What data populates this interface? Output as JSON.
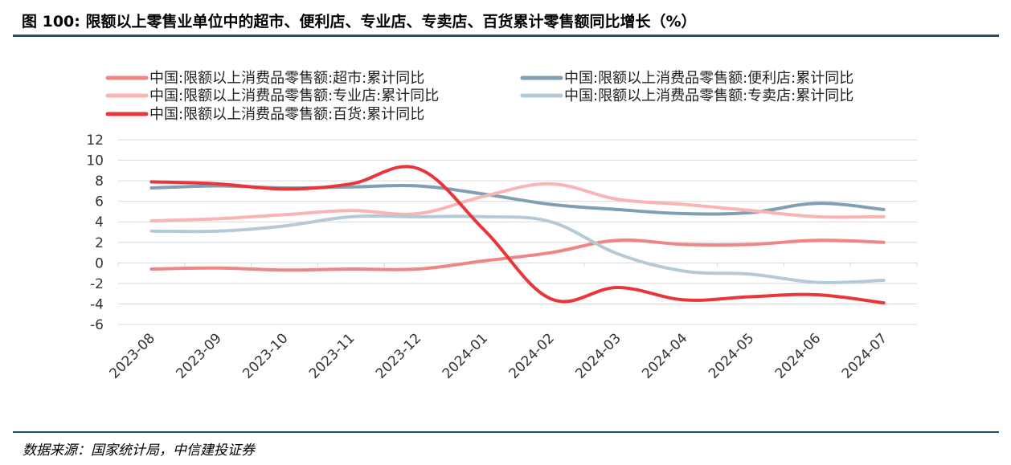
{
  "header": {
    "title": "图 100:  限额以上零售业单位中的超市、便利店、专业店、专卖店、百货累计零售额同比增长（%）"
  },
  "footer": {
    "source": "数据来源：国家统计局，中信建投证券"
  },
  "chart_data": {
    "type": "line",
    "title": "图 100:  限额以上零售业单位中的超市、便利店、专业店、专卖店、百货累计零售额同比增长（%）",
    "xlabel": "",
    "ylabel": "",
    "ylim": [
      -6,
      12
    ],
    "yticks": [
      12,
      10,
      8,
      6,
      4,
      2,
      0,
      -2,
      -4,
      -6
    ],
    "grid": true,
    "legend_position": "top",
    "categories": [
      "2023-08",
      "2023-09",
      "2023-10",
      "2023-11",
      "2023-12",
      "2024-01",
      "2024-02",
      "2024-03",
      "2024-04",
      "2024-05",
      "2024-06",
      "2024-07"
    ],
    "series": [
      {
        "name": "中国:限额以上消费品零售额:超市:累计同比",
        "color": "#ef8684",
        "values": [
          -0.6,
          -0.5,
          -0.7,
          -0.6,
          -0.6,
          0.2,
          1.0,
          2.2,
          1.8,
          1.8,
          2.2,
          2.0
        ]
      },
      {
        "name": "中国:限额以上消费品零售额:便利店:累计同比",
        "color": "#7f9fb5",
        "values": [
          7.3,
          7.5,
          7.3,
          7.4,
          7.5,
          6.7,
          5.7,
          5.2,
          4.8,
          4.9,
          5.8,
          5.2
        ]
      },
      {
        "name": "中国:限额以上消费品零售额:专业店:累计同比",
        "color": "#f8b5b3",
        "values": [
          4.1,
          4.3,
          4.7,
          5.1,
          4.8,
          6.5,
          7.7,
          6.2,
          5.7,
          5.1,
          4.5,
          4.5
        ]
      },
      {
        "name": "中国:限额以上消费品零售额:专卖店:累计同比",
        "color": "#b5c9d6",
        "values": [
          3.1,
          3.1,
          3.6,
          4.5,
          4.5,
          4.5,
          4.0,
          0.9,
          -0.8,
          -1.1,
          -1.9,
          -1.7
        ]
      },
      {
        "name": "中国:限额以上消费品零售额:百货:累计同比",
        "color": "#e8363a",
        "values": [
          7.9,
          7.7,
          7.2,
          7.7,
          9.2,
          3.2,
          -3.5,
          -2.4,
          -3.6,
          -3.3,
          -3.1,
          -3.9
        ]
      }
    ]
  }
}
